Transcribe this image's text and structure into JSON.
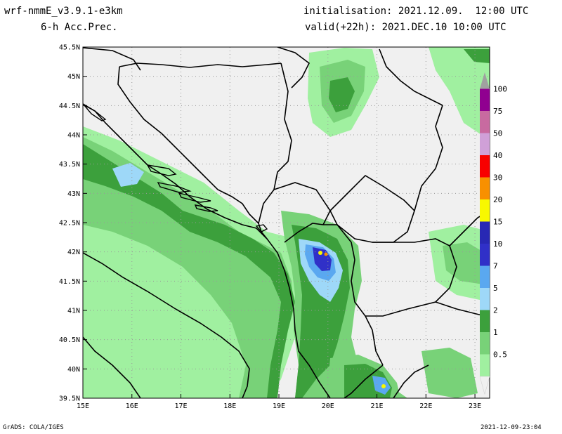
{
  "header": {
    "model": "wrf-nmmE_v3.9.1-e3km",
    "variable": "6-h Acc.Prec.",
    "initialisation": "initialisation: 2021.12.09.  12:00 UTC",
    "valid": "valid(+22h): 2021.DEC.10 10:00 UTC"
  },
  "axes": {
    "lon_labels": [
      "15E",
      "16E",
      "17E",
      "18E",
      "19E",
      "20E",
      "21E",
      "22E",
      "23E"
    ],
    "lat_labels": [
      "45.5N",
      "45N",
      "44.5N",
      "44N",
      "43.5N",
      "43N",
      "42.5N",
      "42N",
      "41.5N",
      "41N",
      "40.5N",
      "40N",
      "39.5N"
    ],
    "lon_range": [
      15,
      23.3
    ],
    "lat_range": [
      39.5,
      45.5
    ]
  },
  "legend": {
    "levels": [
      "0.5",
      "1",
      "2",
      "5",
      "7",
      "10",
      "15",
      "20",
      "30",
      "40",
      "50",
      "75",
      "100"
    ],
    "colors": [
      "#f0f0f0",
      "#a0f0a0",
      "#78d278",
      "#3ca03c",
      "#9ed8f8",
      "#5aa8f0",
      "#3030c8",
      "#2828b4",
      "#f8f800",
      "#f89000",
      "#f80000",
      "#d0a0d8",
      "#c86aa0",
      "#900090",
      "#a0a0a0"
    ]
  },
  "footer": {
    "left": "GrADS: COLA/IGES",
    "right": "2021-12-09-23:04"
  }
}
